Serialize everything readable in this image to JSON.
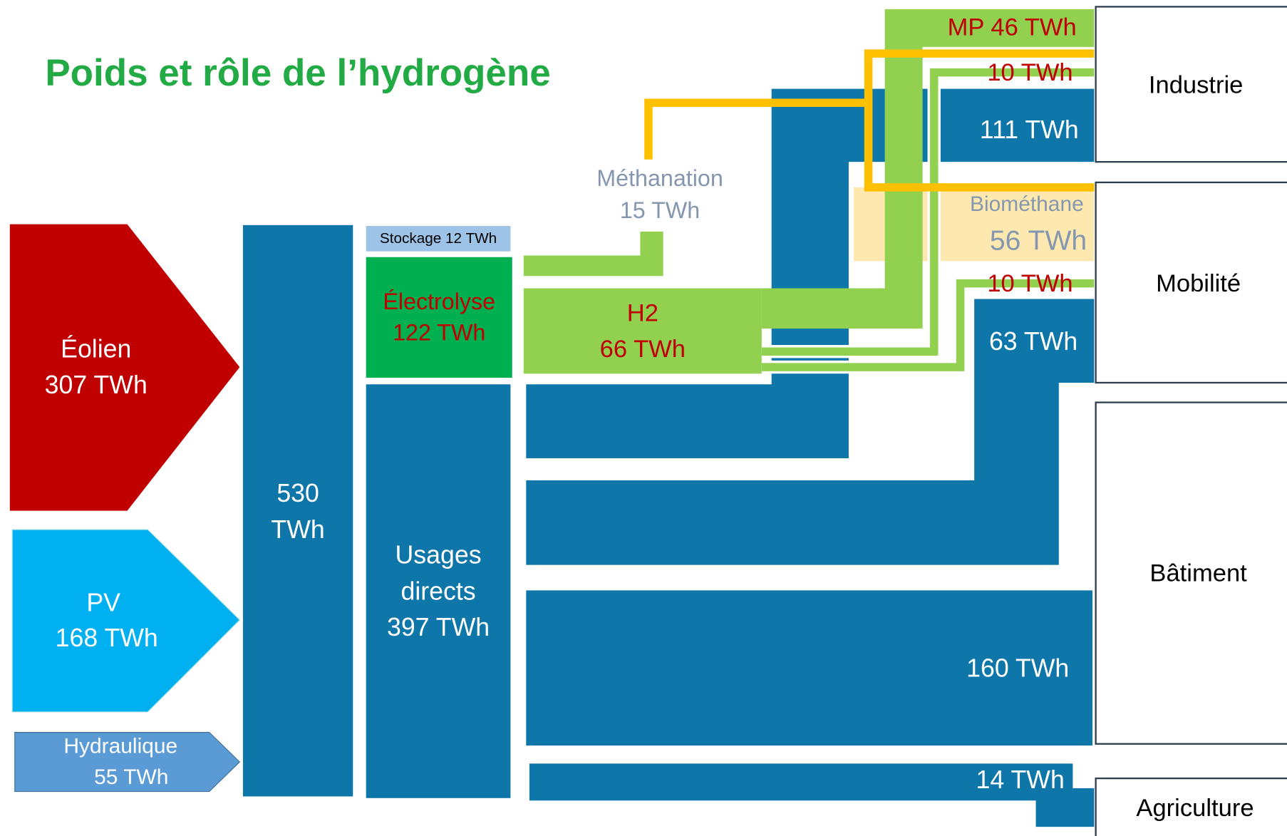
{
  "title": "Poids et rôle de l’hydrogène",
  "sources": [
    {
      "lines": [
        "Éolien",
        "307 TWh"
      ]
    },
    {
      "lines": [
        "PV",
        "168 TWh"
      ]
    },
    {
      "lines": [
        "Hydraulique",
        "55 TWh"
      ]
    }
  ],
  "total": {
    "lines": [
      "530",
      "TWh"
    ]
  },
  "stockage": {
    "lines": [
      "Stockage 12 TWh"
    ]
  },
  "electrolyse": {
    "lines": [
      "Électrolyse",
      "122 TWh"
    ]
  },
  "usages_directs": {
    "lines": [
      "Usages",
      "directs",
      "397 TWh"
    ]
  },
  "methanation": {
    "lines": [
      "Méthanation",
      "15 TWh"
    ]
  },
  "h2": {
    "lines": [
      "H2",
      "66 TWh"
    ]
  },
  "biomethane": {
    "lines": [
      "Biométhane",
      "56 TWh"
    ]
  },
  "flows": {
    "mp_industrie": "MP 46 TWh",
    "h2_industrie": "10 TWh",
    "elec_industrie": "111 TWh",
    "h2_mobilite": "10 TWh",
    "elec_mobilite": "63 TWh",
    "elec_batiment": "160 TWh",
    "elec_agriculture": "14 TWh"
  },
  "sectors": [
    "Industrie",
    "Mobilité",
    "Bâtiment",
    "Agriculture"
  ]
}
